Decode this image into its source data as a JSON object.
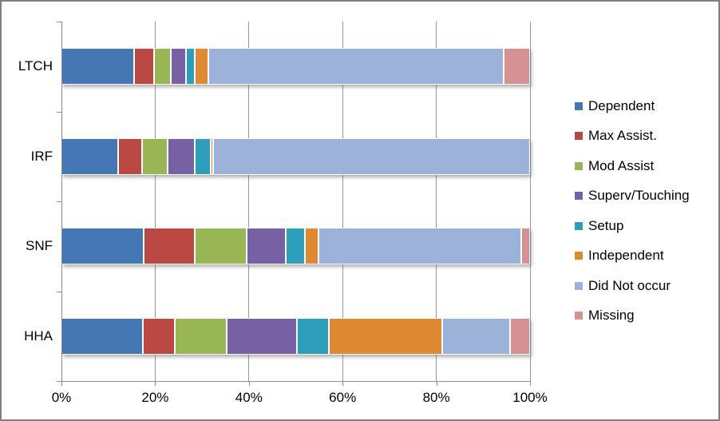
{
  "chart_data": {
    "type": "bar",
    "orientation": "horizontal",
    "stacked": true,
    "title": "",
    "xlabel": "",
    "ylabel": "",
    "categories": [
      "LTCH",
      "IRF",
      "SNF",
      "HHA"
    ],
    "series": [
      {
        "name": "Dependent",
        "color": "#4577B3",
        "values": [
          15.5,
          12.1,
          17.6,
          17.4
        ]
      },
      {
        "name": "Max Assist.",
        "color": "#BA4741",
        "values": [
          4.3,
          5.1,
          10.8,
          6.8
        ]
      },
      {
        "name": "Mod Assist",
        "color": "#98B654",
        "values": [
          3.6,
          5.5,
          11.1,
          11.0
        ]
      },
      {
        "name": "Superv/Touching",
        "color": "#7561A3",
        "values": [
          3.1,
          5.8,
          8.3,
          15.1
        ]
      },
      {
        "name": "Setup",
        "color": "#2E9FBA",
        "values": [
          2.0,
          3.3,
          4.2,
          6.7
        ]
      },
      {
        "name": "Independent",
        "color": "#DF8A33",
        "values": [
          2.9,
          0.5,
          2.8,
          24.2
        ]
      },
      {
        "name": "Did Not occur",
        "color": "#9DB2DB",
        "values": [
          62.9,
          67.7,
          43.4,
          14.6
        ]
      },
      {
        "name": "Missing",
        "color": "#D59192",
        "values": [
          5.7,
          0.0,
          1.8,
          4.2
        ]
      }
    ],
    "x_axis": {
      "min": 0,
      "max": 100,
      "tick_step": 20,
      "tick_labels": [
        "0%",
        "20%",
        "40%",
        "60%",
        "80%",
        "100%"
      ]
    },
    "legend_position": "right",
    "grid": true,
    "colors_meta": {
      "frame_border": "#7f7f7f",
      "gridline": "#969696",
      "axis_line": "#8c8c8c",
      "background": "#ffffff",
      "text": "#000000"
    }
  }
}
